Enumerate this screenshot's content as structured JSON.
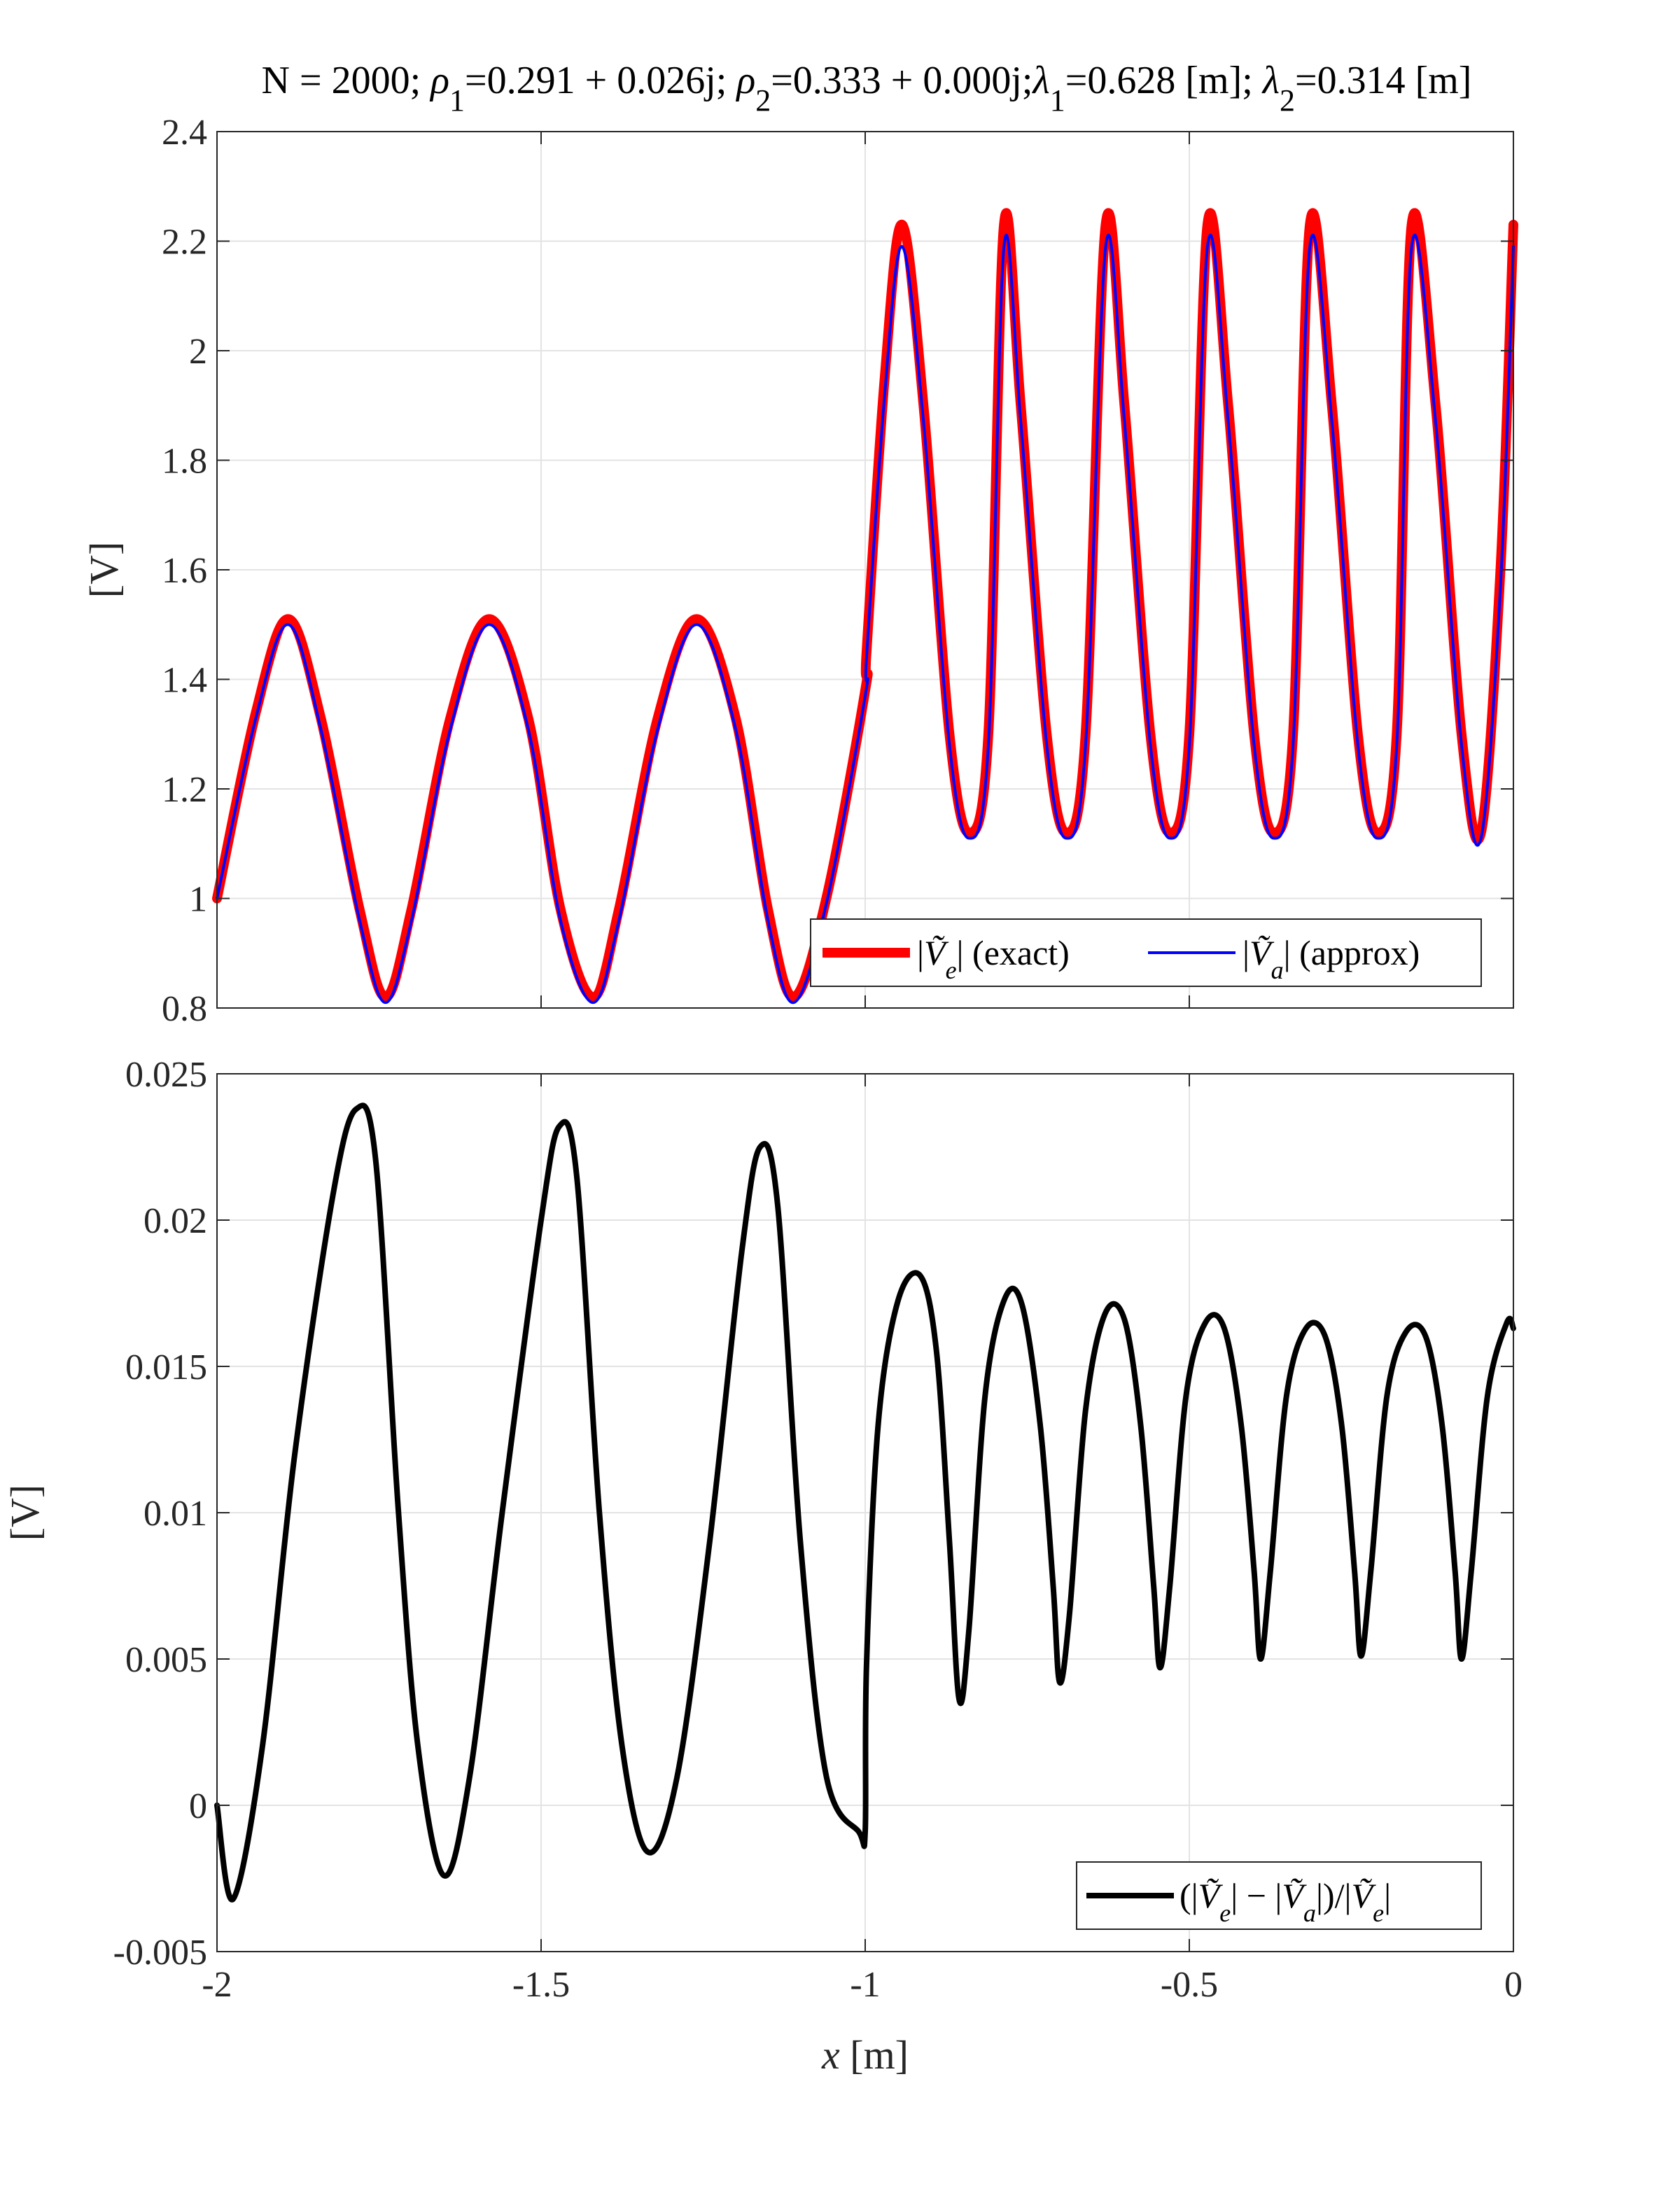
{
  "chart_data": [
    {
      "type": "line",
      "title": "N = 2000; ρ1=0.291 + 0.026j; ρ2=0.333 + 0.000j;λ1=0.628 [m]; λ2=0.314 [m]",
      "xlabel": "",
      "ylabel": "[V]",
      "xlim": [
        -2,
        0
      ],
      "ylim": [
        0.8,
        2.4
      ],
      "yticks": [
        0.8,
        1,
        1.2,
        1.4,
        1.6,
        1.8,
        2,
        2.2,
        2.4
      ],
      "ytick_labels": [
        "0.8",
        "1",
        "1.2",
        "1.4",
        "1.6",
        "1.8",
        "2",
        "2.2",
        "2.4"
      ],
      "xticks": [
        -2,
        -1.5,
        -1,
        -0.5,
        0
      ],
      "grid": true,
      "legend": {
        "placement": "bottom-right",
        "orientation": "horizontal"
      },
      "series": [
        {
          "name": "|Ṽe| (exact)",
          "color": "#ff0000",
          "x": [
            -2.0,
            -1.94,
            -1.89,
            -1.84,
            -1.78,
            -1.74,
            -1.7,
            -1.64,
            -1.58,
            -1.52,
            -1.47,
            -1.42,
            -1.38,
            -1.32,
            -1.26,
            -1.2,
            -1.15,
            -1.11,
            -1.06,
            -1.0,
            -0.998,
            -0.97,
            -0.943,
            -0.91,
            -0.87,
            -0.84,
            -0.81,
            -0.786,
            -0.76,
            -0.72,
            -0.69,
            -0.66,
            -0.629,
            -0.6,
            -0.56,
            -0.53,
            -0.5,
            -0.472,
            -0.44,
            -0.4,
            -0.37,
            -0.34,
            -0.314,
            -0.28,
            -0.24,
            -0.21,
            -0.18,
            -0.157,
            -0.12,
            -0.08,
            -0.05,
            -0.02,
            0.0
          ],
          "y": [
            1.0,
            1.34,
            1.51,
            1.33,
            0.98,
            0.82,
            0.98,
            1.33,
            1.51,
            1.33,
            0.98,
            0.82,
            0.98,
            1.33,
            1.51,
            1.33,
            0.98,
            0.82,
            1.0,
            1.38,
            1.45,
            1.95,
            2.23,
            1.9,
            1.3,
            1.12,
            1.3,
            2.23,
            1.9,
            1.3,
            1.12,
            1.3,
            2.23,
            1.9,
            1.3,
            1.12,
            1.3,
            2.23,
            1.9,
            1.3,
            1.12,
            1.3,
            2.23,
            1.9,
            1.3,
            1.12,
            1.3,
            2.23,
            1.9,
            1.3,
            1.12,
            1.6,
            2.23
          ]
        },
        {
          "name": "|Ṽa| (approx)",
          "color": "#0000ff",
          "x": [
            -2.0,
            -1.94,
            -1.89,
            -1.84,
            -1.78,
            -1.74,
            -1.7,
            -1.64,
            -1.58,
            -1.52,
            -1.47,
            -1.42,
            -1.38,
            -1.32,
            -1.26,
            -1.2,
            -1.15,
            -1.11,
            -1.06,
            -1.0,
            -0.998,
            -0.97,
            -0.943,
            -0.91,
            -0.87,
            -0.84,
            -0.81,
            -0.786,
            -0.76,
            -0.72,
            -0.69,
            -0.66,
            -0.629,
            -0.6,
            -0.56,
            -0.53,
            -0.5,
            -0.472,
            -0.44,
            -0.4,
            -0.37,
            -0.34,
            -0.314,
            -0.28,
            -0.24,
            -0.21,
            -0.18,
            -0.157,
            -0.12,
            -0.08,
            -0.05,
            -0.02,
            0.0
          ],
          "y": [
            1.0,
            1.33,
            1.5,
            1.31,
            0.96,
            0.81,
            0.96,
            1.31,
            1.5,
            1.31,
            0.96,
            0.81,
            0.96,
            1.31,
            1.5,
            1.31,
            0.96,
            0.81,
            0.99,
            1.37,
            1.44,
            1.92,
            2.19,
            1.87,
            1.28,
            1.11,
            1.28,
            2.19,
            1.87,
            1.28,
            1.11,
            1.28,
            2.19,
            1.87,
            1.28,
            1.11,
            1.28,
            2.19,
            1.87,
            1.28,
            1.11,
            1.28,
            2.19,
            1.87,
            1.28,
            1.11,
            1.28,
            2.19,
            1.87,
            1.28,
            1.11,
            1.57,
            2.19
          ]
        }
      ]
    },
    {
      "type": "line",
      "title": "",
      "xlabel": "x [m]",
      "ylabel": "[V]",
      "xlim": [
        -2,
        0
      ],
      "ylim": [
        -0.005,
        0.025
      ],
      "yticks": [
        -0.005,
        0,
        0.005,
        0.01,
        0.015,
        0.02,
        0.025
      ],
      "ytick_labels": [
        "-0.005",
        "0",
        "0.005",
        "0.01",
        "0.015",
        "0.02",
        "0.025"
      ],
      "xticks": [
        -2,
        -1.5,
        -1,
        -0.5,
        0
      ],
      "xtick_labels": [
        "-2",
        "-1.5",
        "-1",
        "-0.5",
        "0"
      ],
      "grid": true,
      "legend": {
        "placement": "bottom-right",
        "orientation": "horizontal"
      },
      "series": [
        {
          "name": "(|Ṽe| − |Ṽa|)/|Ṽe|",
          "color": "#000000",
          "x": [
            -2.0,
            -1.975,
            -1.93,
            -1.88,
            -1.82,
            -1.785,
            -1.755,
            -1.72,
            -1.69,
            -1.65,
            -1.61,
            -1.56,
            -1.5,
            -1.472,
            -1.445,
            -1.41,
            -1.375,
            -1.335,
            -1.29,
            -1.24,
            -1.19,
            -1.162,
            -1.135,
            -1.1,
            -1.06,
            -1.01,
            -1.0,
            -0.998,
            -0.98,
            -0.95,
            -0.915,
            -0.89,
            -0.87,
            -0.855,
            -0.84,
            -0.815,
            -0.785,
            -0.758,
            -0.73,
            -0.71,
            -0.7,
            -0.685,
            -0.66,
            -0.63,
            -0.6,
            -0.575,
            -0.555,
            -0.545,
            -0.53,
            -0.505,
            -0.475,
            -0.446,
            -0.42,
            -0.4,
            -0.39,
            -0.375,
            -0.35,
            -0.32,
            -0.29,
            -0.265,
            -0.245,
            -0.235,
            -0.22,
            -0.195,
            -0.165,
            -0.135,
            -0.11,
            -0.09,
            -0.08,
            -0.065,
            -0.04,
            -0.01,
            0.0
          ],
          "y": [
            0.0,
            -0.0032,
            0.002,
            0.012,
            0.021,
            0.0238,
            0.022,
            0.01,
            0.002,
            -0.0024,
            0.001,
            0.01,
            0.02,
            0.0232,
            0.0215,
            0.01,
            0.002,
            -0.0016,
            0.001,
            0.009,
            0.019,
            0.0225,
            0.0205,
            0.009,
            0.001,
            -0.0009,
            -0.0009,
            0.0048,
            0.013,
            0.0172,
            0.0181,
            0.0155,
            0.009,
            0.0036,
            0.006,
            0.014,
            0.0173,
            0.0171,
            0.013,
            0.0075,
            0.0042,
            0.0065,
            0.0135,
            0.0168,
            0.0166,
            0.013,
            0.0075,
            0.0047,
            0.0075,
            0.014,
            0.0165,
            0.0163,
            0.013,
            0.008,
            0.005,
            0.008,
            0.014,
            0.0163,
            0.016,
            0.013,
            0.008,
            0.0051,
            0.008,
            0.014,
            0.0162,
            0.016,
            0.013,
            0.008,
            0.005,
            0.008,
            0.014,
            0.0165,
            0.0163
          ]
        }
      ]
    }
  ]
}
